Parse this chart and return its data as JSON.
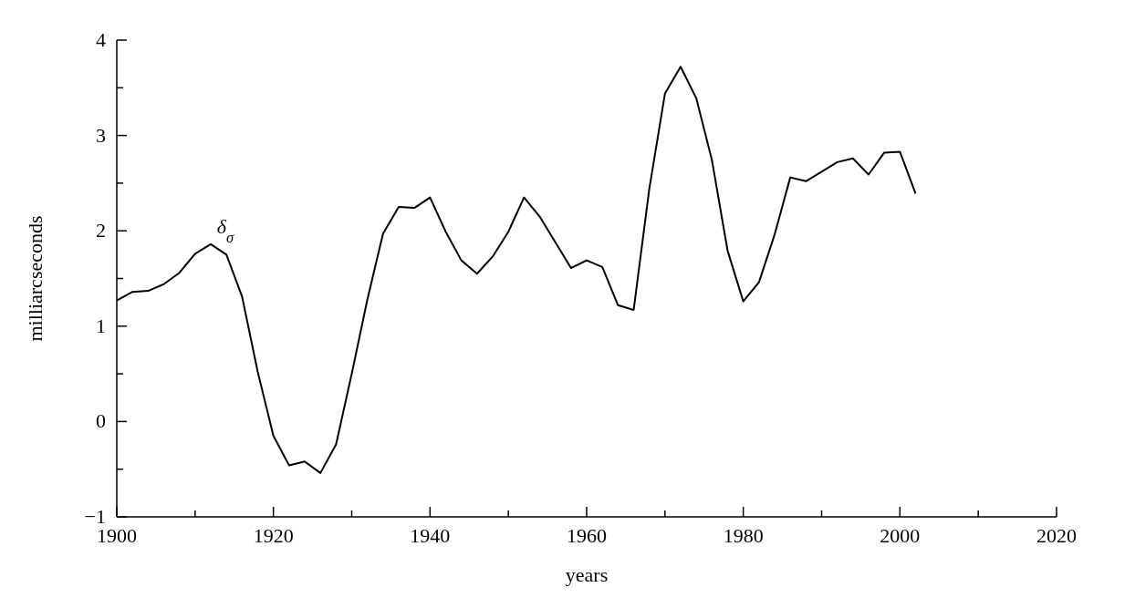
{
  "chart_data": {
    "type": "line",
    "xlabel": "years",
    "ylabel": "milliarcseconds",
    "x": [
      1900,
      1902,
      1904,
      1906,
      1908,
      1910,
      1912,
      1914,
      1916,
      1918,
      1920,
      1922,
      1924,
      1926,
      1928,
      1930,
      1932,
      1934,
      1936,
      1938,
      1940,
      1942,
      1944,
      1946,
      1948,
      1950,
      1952,
      1954,
      1956,
      1958,
      1960,
      1962,
      1964,
      1966,
      1968,
      1970,
      1972,
      1974,
      1976,
      1978,
      1980,
      1982,
      1984,
      1986,
      1988,
      1990,
      1992,
      1994,
      1996,
      1998,
      2000,
      2002
    ],
    "series": [
      {
        "color": "#000000",
        "values": [
          1.27,
          1.36,
          1.37,
          1.44,
          1.56,
          1.76,
          1.86,
          1.75,
          1.31,
          0.52,
          -0.15,
          -0.46,
          -0.42,
          -0.54,
          -0.24,
          0.5,
          1.28,
          1.97,
          2.25,
          2.24,
          2.35,
          1.99,
          1.69,
          1.55,
          1.73,
          1.99,
          2.35,
          2.15,
          1.88,
          1.61,
          1.69,
          1.62,
          1.22,
          1.17,
          2.44,
          3.44,
          3.72,
          3.39,
          2.74,
          1.79,
          1.26,
          1.46,
          1.96,
          2.56,
          2.52,
          2.62,
          2.72,
          2.76,
          2.59,
          2.82,
          2.83,
          2.39
        ]
      }
    ],
    "xlim": [
      1900,
      2020
    ],
    "xticks": [
      1900,
      {
        "value": 1910,
        "label": null
      },
      1920,
      {
        "value": 1930,
        "label": null
      },
      1940,
      {
        "value": 1950,
        "label": null
      },
      1960,
      {
        "value": 1970,
        "label": null
      },
      1980,
      {
        "value": 1990,
        "label": null
      },
      2000,
      {
        "value": 2010,
        "label": null
      },
      2020
    ],
    "ylim": [
      -1,
      4
    ],
    "yticks": [
      {
        "value": -1,
        "label": "−1"
      },
      {
        "value": -0.5,
        "label": null
      },
      0,
      {
        "value": 0.5,
        "label": null
      },
      1,
      {
        "value": 1.5,
        "label": null
      },
      2,
      {
        "value": 2.5,
        "label": null
      },
      3,
      {
        "value": 3.5,
        "label": null
      },
      4
    ],
    "annotations": [
      {
        "text": "δ$_{σ}$",
        "x": 1912,
        "y": 1.86
      }
    ],
    "grid": false,
    "legend": false,
    "marker": "none",
    "line_style": "solid"
  }
}
